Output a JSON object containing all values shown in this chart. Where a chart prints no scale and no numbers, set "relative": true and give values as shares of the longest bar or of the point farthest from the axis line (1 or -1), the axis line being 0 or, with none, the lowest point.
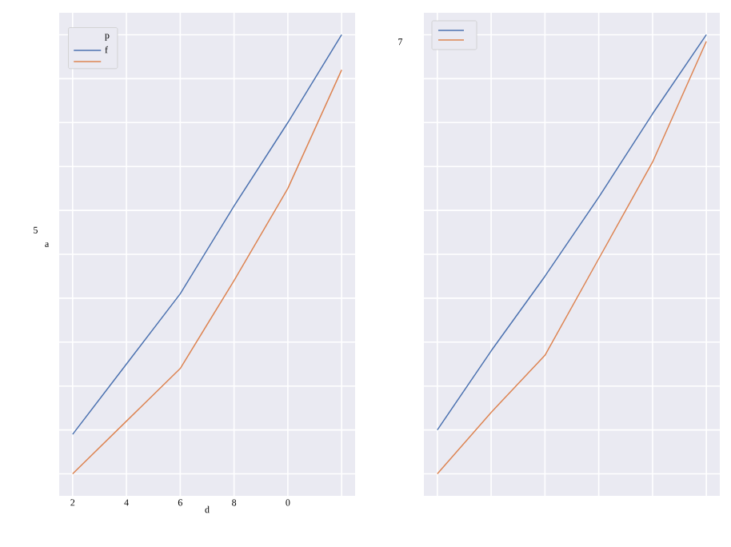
{
  "chart_data": [
    {
      "type": "line",
      "categories": [
        "2",
        "4",
        "6",
        "8",
        "0",
        null
      ],
      "xlabel": "d",
      "ylabel": "a",
      "legend_title": "p",
      "legend": "top left",
      "grid": true,
      "relative": true,
      "annotations": [
        "5"
      ],
      "series": [
        {
          "name": "f",
          "color": "#4c72b0",
          "values": [
            0.09,
            0.25,
            0.41,
            0.61,
            0.8,
            1
          ]
        },
        {
          "color": "#dd8452",
          "values": [
            0,
            0.12,
            0.24,
            0.44,
            0.65,
            0.92
          ]
        }
      ]
    },
    {
      "type": "line",
      "categories": [
        null,
        null,
        null,
        null,
        null,
        null
      ],
      "legend": "top left",
      "grid": true,
      "relative": true,
      "annotations": [
        "7"
      ],
      "series": [
        {
          "color": "#4c72b0",
          "values": [
            0.1,
            0.28,
            0.45,
            0.63,
            0.82,
            1
          ]
        },
        {
          "color": "#dd8452",
          "values": [
            0,
            0.14,
            0.27,
            0.49,
            0.71,
            0.985
          ]
        }
      ]
    }
  ]
}
